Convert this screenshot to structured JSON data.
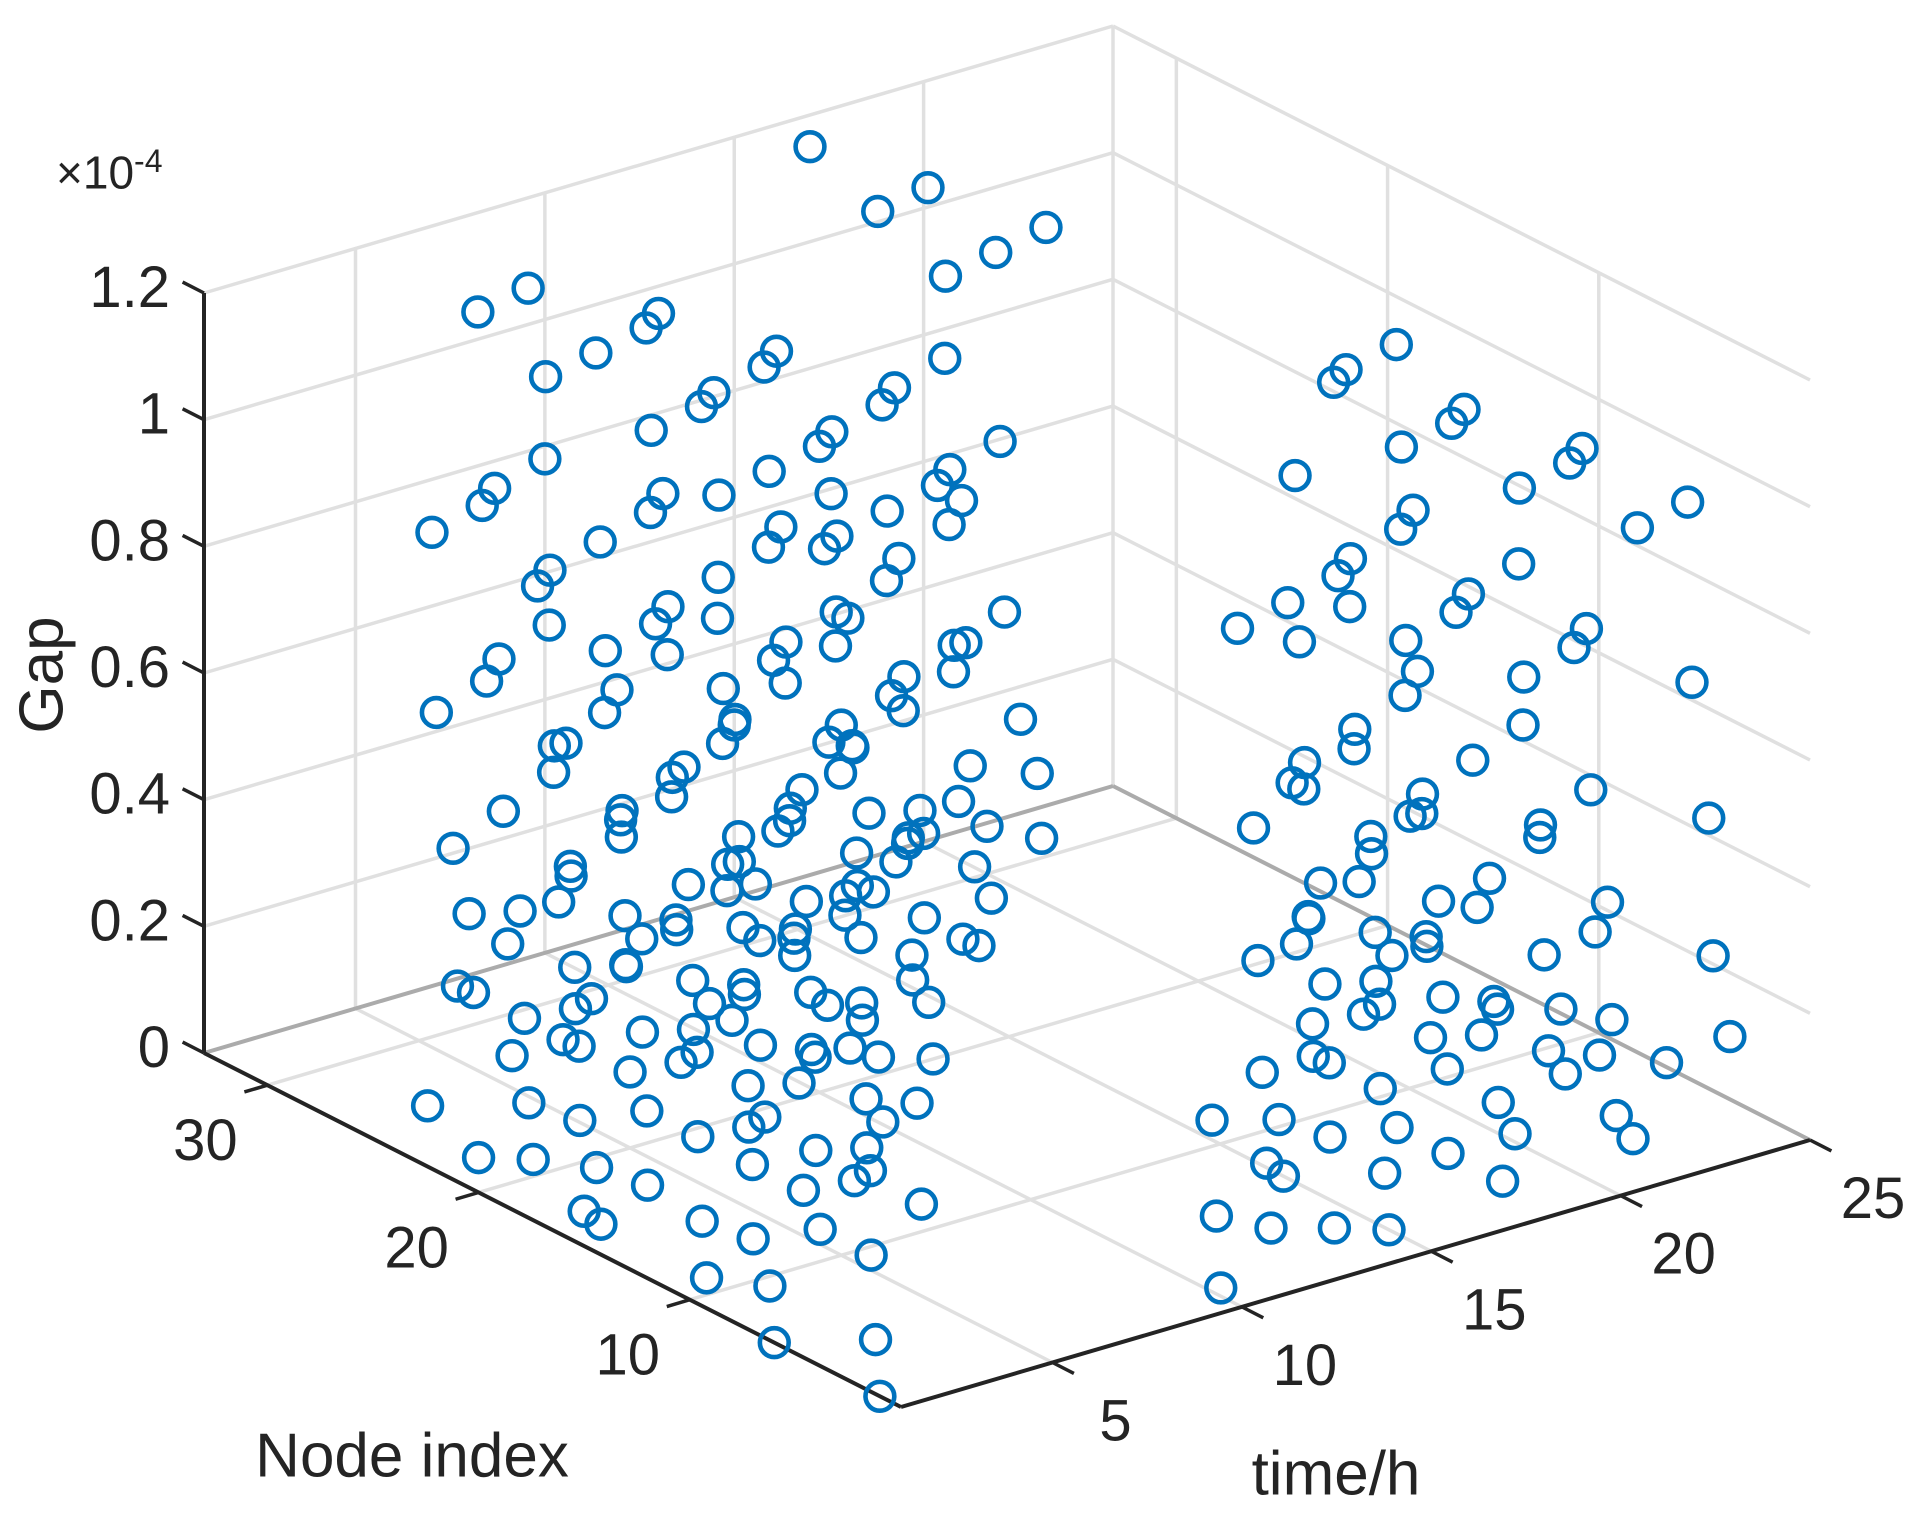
{
  "figure": {
    "background": "#ffffff",
    "kind": "matlab-3d-scatter",
    "grid": true
  },
  "chart_data": {
    "type": "scatter",
    "title": "",
    "legend": null,
    "marker": "open-circle",
    "marker_color": "#0072BD",
    "grid_color": "#e0e0e0",
    "edge_color": "#ababab",
    "axis_color": "#242424",
    "axes": {
      "x": {
        "label": "time/h",
        "min": 1,
        "max": 25,
        "ticks": [
          5,
          10,
          15,
          20,
          25
        ]
      },
      "y": {
        "label": "Node index",
        "min": 0,
        "max": 33,
        "ticks": [
          10,
          20,
          30
        ]
      },
      "z": {
        "label": "Gap",
        "min": 0,
        "max": 1.2,
        "ticks": [
          0,
          0.2,
          0.4,
          0.6,
          0.8,
          1,
          1.2
        ],
        "tick_labels": [
          "0",
          "0.2",
          "0.4",
          "0.6",
          "0.8",
          "1",
          "1.2"
        ],
        "multiplier_base": "×10",
        "multiplier_exp": "-4"
      }
    },
    "points": {
      "gap_units": "1e-4",
      "time": [
        1,
        6,
        11,
        16,
        21,
        2,
        7,
        12,
        17,
        22,
        3,
        8,
        13,
        18,
        23,
        4,
        9,
        14,
        19,
        24,
        5,
        10,
        15,
        20,
        2,
        7,
        12,
        17,
        22,
        3,
        8,
        13,
        18,
        23,
        4,
        9,
        14,
        19,
        24,
        5,
        10,
        15,
        20,
        1,
        6,
        11,
        16,
        21,
        3,
        8,
        13,
        18,
        23,
        4,
        9,
        14,
        19,
        24,
        5,
        10,
        15,
        20,
        1,
        6,
        11,
        16,
        21,
        2,
        7,
        12,
        17,
        22,
        4,
        9,
        14,
        19,
        24,
        5,
        10,
        15,
        20,
        1,
        6,
        11,
        16,
        21,
        2,
        7,
        12,
        17,
        22,
        3,
        8,
        13,
        18,
        23,
        5,
        10,
        15,
        20,
        1,
        6,
        11,
        16,
        21,
        2,
        7,
        12,
        17,
        22,
        3,
        8,
        13,
        18,
        23,
        4,
        9,
        14,
        19,
        24,
        6,
        11,
        16,
        21,
        2,
        7,
        12,
        17,
        22,
        3,
        8,
        13,
        18,
        23,
        4,
        9,
        14,
        19,
        24,
        5,
        10,
        15,
        20,
        1,
        7,
        12,
        17,
        22,
        3,
        8,
        13,
        18,
        23,
        4,
        9,
        14,
        19,
        24,
        5,
        10,
        15,
        20,
        1,
        6,
        11,
        16,
        21,
        2,
        8,
        13,
        18,
        23,
        4,
        9,
        14,
        19,
        24,
        5,
        10,
        15,
        20,
        1,
        6,
        11,
        16,
        21,
        2,
        7,
        12,
        17,
        22,
        3,
        9,
        14,
        19,
        24,
        5,
        10,
        15,
        20,
        1,
        6,
        11,
        16,
        21,
        2,
        7,
        12,
        17,
        22,
        3,
        8,
        13,
        18,
        23,
        4,
        10,
        15,
        20,
        1,
        6,
        11,
        16,
        21,
        2,
        7,
        12,
        17,
        22,
        3,
        8,
        13,
        18,
        23,
        4,
        9,
        14,
        19,
        24,
        5,
        11,
        16,
        21,
        2,
        7,
        12,
        17,
        22,
        3,
        8,
        13,
        18,
        23,
        4,
        9,
        14,
        19,
        24,
        5,
        10,
        15,
        20,
        1,
        6,
        12,
        17,
        22,
        3,
        8,
        13,
        18,
        23,
        4,
        9,
        14,
        19,
        24,
        5,
        10,
        15,
        20,
        1,
        6,
        11,
        16,
        21,
        2,
        7,
        13,
        18,
        23,
        4,
        9,
        14,
        19,
        24,
        5,
        10,
        15,
        20,
        1,
        6,
        11,
        16,
        21,
        2,
        7,
        12,
        17,
        22,
        3,
        8
      ],
      "node": [
        1,
        8,
        15,
        22,
        29,
        3,
        10,
        17,
        24,
        31,
        5,
        12,
        19,
        26,
        33,
        7,
        14,
        21,
        28,
        2,
        9,
        16,
        23,
        30,
        4,
        11,
        18,
        25,
        32,
        6,
        13,
        20,
        27,
        1,
        8,
        15,
        22,
        29,
        3,
        10,
        17,
        24,
        31,
        5,
        12,
        19,
        26,
        33,
        7,
        14,
        21,
        28,
        2,
        9,
        16,
        23,
        30,
        4,
        11,
        18,
        25,
        32,
        6,
        13,
        20,
        27,
        1,
        8,
        15,
        22,
        29,
        3,
        10,
        17,
        24,
        31,
        5,
        12,
        19,
        26,
        33,
        7,
        14,
        21,
        28,
        2,
        9,
        16,
        23,
        30,
        4,
        11,
        18,
        25,
        32,
        6,
        13,
        20,
        27,
        1,
        8,
        15,
        22,
        29,
        3,
        10,
        17,
        24,
        31,
        5,
        12,
        19,
        26,
        33,
        7,
        14,
        21,
        28,
        2,
        9,
        16,
        23,
        30,
        4,
        11,
        18,
        25,
        32,
        6,
        13,
        20,
        27,
        1,
        8,
        15,
        22,
        29,
        3,
        10,
        17,
        24,
        31,
        5,
        12,
        19,
        26,
        33,
        7,
        14,
        21,
        28,
        2,
        9,
        16,
        23,
        30,
        4,
        11,
        18,
        25,
        32,
        6,
        13,
        20,
        27,
        1,
        8,
        15,
        22,
        29,
        3,
        10,
        17,
        24,
        31,
        5,
        12,
        19,
        26,
        33,
        7,
        14,
        21,
        28,
        2,
        9,
        16,
        23,
        30,
        4,
        11,
        18,
        25,
        32,
        6,
        13,
        20,
        27,
        1,
        8,
        15,
        22,
        29,
        3,
        10,
        17,
        24,
        31,
        5,
        12,
        19,
        26,
        33,
        7,
        14,
        21,
        28,
        2,
        9,
        16,
        23,
        30,
        4,
        11,
        18,
        25,
        32,
        6,
        13,
        20,
        27,
        1,
        8,
        15,
        22,
        29,
        3,
        10,
        17,
        24,
        31,
        5,
        12,
        19,
        26,
        33,
        7,
        14,
        21,
        28,
        2,
        9,
        16,
        23,
        30,
        4,
        11,
        18,
        25,
        32,
        6,
        13,
        20,
        27,
        1,
        8,
        15,
        22,
        29,
        3,
        10,
        17,
        24,
        31,
        5,
        12,
        19,
        26,
        33,
        7,
        14,
        21,
        28,
        2,
        9,
        16,
        23,
        30,
        4,
        11,
        18,
        25,
        32,
        6,
        13,
        20,
        27,
        1,
        8,
        15,
        22,
        29,
        3,
        10,
        17,
        24,
        31,
        5,
        12,
        19,
        26,
        33
      ],
      "gap": [
        0,
        0.097,
        0.309,
        0.619,
        1.02,
        0.038,
        0.205,
        0.475,
        0.837,
        0.004,
        0.12,
        0.348,
        0.67,
        1.084,
        0.055,
        0.238,
        0.521,
        0.896,
        0.013,
        0.147,
        0.388,
        0.724,
        1.15,
        0.075,
        0.272,
        0.569,
        0.957,
        0.024,
        0.175,
        0.43,
        0.78,
        0,
        0.097,
        0.309,
        0.619,
        1.02,
        0.038,
        0.205,
        0.475,
        0.837,
        0.004,
        0.12,
        0.348,
        0.67,
        1.084,
        0.055,
        0.238,
        0.521,
        0.896,
        0.013,
        0.147,
        0.388,
        0.724,
        1.15,
        0.075,
        0.272,
        0.569,
        0.957,
        0.024,
        0.175,
        0.43,
        0.78,
        0,
        0.097,
        0.309,
        0.619,
        1.02,
        0.038,
        0.205,
        0.475,
        0.837,
        0.004,
        0.12,
        0.348,
        0.67,
        1.084,
        0.055,
        0.238,
        0.521,
        0.896,
        0.013,
        0.147,
        0.388,
        0.724,
        1.15,
        0.075,
        0.272,
        0.569,
        0.957,
        0.024,
        0.175,
        0.43,
        0.78,
        0,
        0.097,
        0.309,
        0.619,
        1.02,
        0.038,
        0.205,
        0.475,
        0.837,
        0.004,
        0.12,
        0.348,
        0.67,
        1.084,
        0.055,
        0.238,
        0.521,
        0.896,
        0.013,
        0.147,
        0.388,
        0.724,
        1.15,
        0.075,
        0.272,
        0.569,
        0.957,
        0.024,
        0.175,
        0.43,
        0.78,
        0,
        0.097,
        0.309,
        0.619,
        1.02,
        0.038,
        0.205,
        0.475,
        0.837,
        0.004,
        0.12,
        0.348,
        0.67,
        1.084,
        0.055,
        0.238,
        0.521,
        0.896,
        0.013,
        0.147,
        0.388,
        0.724,
        1.15,
        0.075,
        0.272,
        0.569,
        0.957,
        0.024,
        0.175,
        0.43,
        0.78,
        0,
        0.097,
        0.309,
        0.619,
        1.02,
        0.038,
        0.205,
        0.475,
        0.837,
        0.004,
        0.12,
        0.348,
        0.67,
        1.084,
        0.055,
        0.238,
        0.521,
        0.896,
        0.013,
        0.147,
        0.388,
        0.724,
        1.15,
        0.075,
        0.272,
        0.569,
        0.957,
        0.024,
        0.175,
        0.43,
        0.78,
        0,
        0.097,
        0.309,
        0.619,
        1.02,
        0.038,
        0.205,
        0.475,
        0.837,
        0.004,
        0.12,
        0.348,
        0.67,
        1.084,
        0.055,
        0.238,
        0.521,
        0.896,
        0.013,
        0.147,
        0.388,
        0.724,
        1.15,
        0.075,
        0.272,
        0.569,
        0.957,
        0.024,
        0.175,
        0.43,
        0.78,
        0,
        0.097,
        0.309,
        0.619,
        1.02,
        0.038,
        0.205,
        0.475,
        0.837,
        0.004,
        0.12,
        0.348,
        0.67,
        1.084,
        0.055,
        0.238,
        0.521,
        0.896,
        0.013,
        0.147,
        0.388,
        0.724,
        1.15,
        0.075,
        0.272,
        0.569,
        0.957,
        0.024,
        0.175,
        0.43,
        0.78,
        0,
        0.097,
        0.309,
        0.619,
        1.02,
        0.038,
        0.205,
        0.475,
        0.837,
        0.004,
        0.12,
        0.348,
        0.67,
        1.084,
        0.055,
        0.238,
        0.521,
        0.896,
        0.013,
        0.147,
        0.388,
        0.724,
        1.15,
        0.075,
        0.272,
        0.569,
        0.957,
        0.024,
        0.175,
        0.43,
        0.78,
        0,
        0.097,
        0.309,
        0.619,
        1.02,
        0.038,
        0.205,
        0.475,
        0.837,
        0.004,
        0.12,
        0.348,
        0.67,
        1.084,
        0.055,
        0.238,
        0.521,
        0.896,
        0.013,
        0.147,
        0.388,
        0.724,
        1.15,
        0.075,
        0.272,
        0.569,
        0.957,
        0.024,
        0.175,
        0.43,
        0.78,
        0,
        0.097
      ]
    }
  }
}
